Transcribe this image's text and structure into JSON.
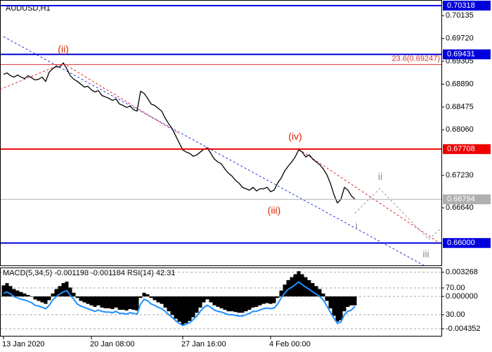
{
  "chart_data": [
    {
      "type": "line",
      "title": "AUDUSD,H1",
      "color": "#000000",
      "categories": [
        "13 Jan 2020",
        null,
        null,
        null,
        null,
        null,
        null,
        null,
        null,
        null,
        null,
        null,
        null,
        null,
        null,
        null,
        null,
        null,
        null,
        null,
        null,
        null,
        null,
        null,
        null,
        "20 Jan 08:00",
        null,
        null,
        null,
        null,
        null,
        null,
        null,
        null,
        null,
        null,
        null,
        null,
        null,
        null,
        null,
        null,
        null,
        null,
        null,
        null,
        null,
        null,
        null,
        null,
        null,
        "27 Jan 16:00",
        null,
        null,
        null,
        null,
        null,
        null,
        null,
        null,
        null,
        null,
        null,
        null,
        null,
        null,
        null,
        null,
        null,
        null,
        null,
        null,
        null,
        null,
        null,
        null,
        "4 Feb 00:00",
        null,
        null,
        null,
        null,
        null,
        null,
        null,
        null,
        null,
        null,
        null,
        null,
        null,
        null,
        null,
        null,
        null,
        null,
        null,
        null,
        null,
        null,
        null,
        null
      ],
      "values": [
        0.69068,
        0.69094,
        0.69043,
        0.69017,
        0.69056,
        0.69017,
        0.68991,
        0.69043,
        0.69004,
        0.68966,
        0.68979,
        0.69017,
        0.6894,
        0.69107,
        0.69171,
        0.6921,
        0.69197,
        0.69274,
        0.69171,
        0.69043,
        0.68979,
        0.6894,
        0.68889,
        0.68837,
        0.6885,
        0.68786,
        0.68747,
        0.68773,
        0.68683,
        0.68657,
        0.68632,
        0.68593,
        0.68619,
        0.68529,
        0.68503,
        0.68465,
        0.6849,
        0.68426,
        0.684,
        0.6876,
        0.68722,
        0.68632,
        0.68529,
        0.68503,
        0.68452,
        0.684,
        0.68272,
        0.68169,
        0.68079,
        0.6795,
        0.67822,
        0.67694,
        0.67655,
        0.67629,
        0.67578,
        0.67604,
        0.67655,
        0.67706,
        0.67732,
        0.67629,
        0.67526,
        0.67475,
        0.67437,
        0.67347,
        0.6727,
        0.67218,
        0.67141,
        0.6709,
        0.67012,
        0.66987,
        0.66961,
        0.67012,
        0.66948,
        0.66987,
        0.66987,
        0.67012,
        0.66935,
        0.66961,
        0.6709,
        0.6718,
        0.67308,
        0.67398,
        0.67475,
        0.67565,
        0.67694,
        0.67655,
        0.67565,
        0.67604,
        0.67526,
        0.67475,
        0.67424,
        0.67347,
        0.67244,
        0.6709,
        0.66884,
        0.6673,
        0.66794,
        0.67012,
        0.66961,
        0.66858,
        0.66794
      ],
      "ylim": [
        0.6558,
        0.7042
      ],
      "yticks": [
        0.70135,
        {
          "value": 0.6972,
          "label": "0.69720"
        },
        0.69305,
        {
          "value": 0.6889,
          "label": "0.68890"
        },
        0.68475,
        {
          "value": 0.6806,
          "label": "0.68060"
        },
        {
          "value": 0.6723,
          "label": "0.67230"
        },
        {
          "value": 0.6664,
          "label": "0.66640"
        }
      ],
      "hlines": [
        {
          "value": 0.70318,
          "color": "#0000dd",
          "width": 2
        },
        {
          "value": 0.69431,
          "color": "#0000dd",
          "width": 2
        },
        {
          "value": 0.69247,
          "color": "#dd3333",
          "width": 1,
          "text": "23.6(0.69247)"
        },
        {
          "value": 0.67708,
          "color": "#ee0000",
          "width": 2
        },
        {
          "value": 0.66794,
          "color": "#b0b0b0",
          "width": 1
        },
        {
          "value": 0.66,
          "label": "0.66000",
          "color": "#0000dd",
          "width": 2
        }
      ],
      "annotations": [
        {
          "text": "(ii)",
          "color": "#dd2200"
        },
        {
          "text": "(iii)",
          "color": "#dd2200"
        },
        {
          "text": "(iv)",
          "color": "#dd2200"
        },
        {
          "text": "i",
          "color": "#888888"
        },
        {
          "text": "ii",
          "color": "#888888"
        },
        {
          "text": "iii",
          "color": "#888888"
        }
      ]
    },
    {
      "type": "macd",
      "title": "MACD(5,34,5) -0.001198 -0.001184 RSI(14) 42.31",
      "series": [
        {
          "color": "#000000",
          "values": [
            0.0015,
            0.0018,
            0.0014,
            0.001,
            0.0008,
            0.0006,
            0.0004,
            0.0002,
            0,
            -0.0004,
            -0.0006,
            -0.0008,
            -0.001,
            -0.0005,
            0.0004,
            0.001,
            0.0014,
            0.0018,
            0.002,
            0.0012,
            0.0005,
            -0.0002,
            -0.0006,
            -0.0008,
            -0.001,
            -0.0012,
            -0.0014,
            -0.0012,
            -0.0015,
            -0.0016,
            -0.0016,
            -0.0017,
            -0.0015,
            -0.0018,
            -0.0018,
            -0.0019,
            -0.0017,
            -0.0018,
            -0.0019,
            -0.0002,
            0.0005,
            0.0003,
            -0.0002,
            -0.0005,
            -0.0008,
            -0.001,
            -0.0015,
            -0.002,
            -0.0025,
            -0.003,
            -0.0034,
            -0.0038,
            -0.0036,
            -0.0033,
            -0.0028,
            -0.0022,
            -0.0015,
            -0.0008,
            -0.0004,
            -0.0008,
            -0.0012,
            -0.0014,
            -0.0016,
            -0.0018,
            -0.002,
            -0.002,
            -0.0021,
            -0.0022,
            -0.0022,
            -0.002,
            -0.0018,
            -0.0015,
            -0.0014,
            -0.0012,
            -0.001,
            -0.0009,
            -0.001,
            -0.0009,
            -0.0002,
            0.0008,
            0.0016,
            0.0022,
            0.0026,
            0.003,
            0.0034,
            0.003,
            0.0026,
            0.0022,
            0.0018,
            0.0014,
            0.001,
            0.0004,
            -0.0006,
            -0.0016,
            -0.0026,
            -0.0034,
            -0.0032,
            -0.002,
            -0.0014,
            -0.0012,
            -0.0012
          ]
        },
        {
          "color": "#1e90ff",
          "axis": "y2",
          "values": [
            62,
            64,
            61,
            57,
            55,
            53,
            52,
            50,
            48,
            44,
            43,
            41,
            39,
            44,
            52,
            57,
            61,
            64,
            66,
            59,
            53,
            46,
            43,
            41,
            39,
            37,
            35,
            37,
            35,
            34,
            34,
            33,
            35,
            32,
            32,
            31,
            33,
            32,
            31,
            46,
            53,
            51,
            46,
            44,
            41,
            39,
            35,
            30,
            26,
            21,
            17,
            14,
            16,
            18,
            23,
            28,
            35,
            41,
            44,
            41,
            37,
            35,
            34,
            32,
            30,
            30,
            29,
            28,
            28,
            30,
            32,
            35,
            35,
            37,
            39,
            40,
            39,
            40,
            46,
            55,
            62,
            68,
            71,
            75,
            79,
            75,
            71,
            68,
            64,
            61,
            57,
            52,
            43,
            34,
            25,
            17,
            19,
            30,
            35,
            37,
            42.31
          ]
        }
      ],
      "ylim": [
        -0.0054,
        0.0039
      ],
      "yticks": [
        0.003268,
        {
          "value": 0,
          "label": "0.000000"
        },
        -0.004352
      ],
      "y2lim": [
        -2.6,
        100.5
      ],
      "y2ticks": [
        {
          "value": 70,
          "label": "70.00"
        },
        {
          "value": 30,
          "label": "30.00"
        }
      ]
    }
  ]
}
